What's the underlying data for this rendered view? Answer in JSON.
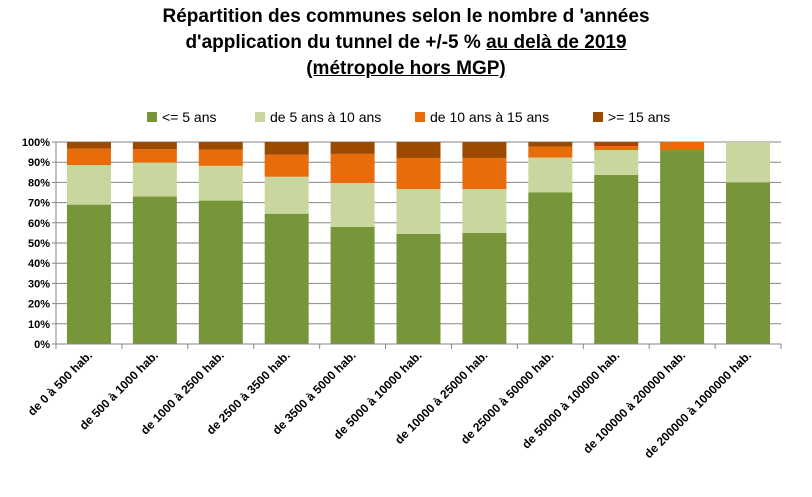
{
  "chart_data": {
    "type": "bar",
    "stacked": "percent",
    "title": {
      "line1": "Répartition des communes selon le nombre d 'années",
      "line2_plain": "d'application du tunnel de +/-5 % ",
      "line2_underlined": "au delà de 2019",
      "line3_underlined": "(métropole hors MGP)"
    },
    "xlabel": "",
    "ylabel": "",
    "ylim": [
      0,
      100
    ],
    "yticks": [
      "0%",
      "10%",
      "20%",
      "30%",
      "40%",
      "50%",
      "60%",
      "70%",
      "80%",
      "90%",
      "100%"
    ],
    "grid": true,
    "legend_placement": "top",
    "categories": [
      "de 0 à 500 hab.",
      "de 500 à 1000 hab.",
      "de 1000 à 2500 hab.",
      "de 2500 à 3500 hab.",
      "de 3500 à 5000 hab.",
      "de 5000 à 10000 hab.",
      "de 10000 à 25000 hab.",
      "de 25000 à 50000 hab.",
      "de 50000 à 100000 hab.",
      "de 100000 à 200000 hab.",
      "de 200000 à 1000000 hab."
    ],
    "series": [
      {
        "name": "<= 5 ans",
        "color": "#77963a",
        "values": [
          69,
          73,
          71,
          64.5,
          58,
          54.5,
          55,
          75,
          83.7,
          96,
          80
        ]
      },
      {
        "name": "de 5 ans à 10 ans",
        "color": "#c9d79e",
        "values": [
          19.6,
          16.8,
          17.2,
          18.3,
          21.7,
          22.2,
          21.7,
          17.3,
          12.3,
          0,
          20
        ]
      },
      {
        "name": "de 10 ans à 15 ans",
        "color": "#e86c0a",
        "values": [
          8.1,
          6.6,
          8.1,
          10.9,
          14.4,
          15.4,
          15.4,
          5.4,
          2,
          4,
          0
        ]
      },
      {
        "name": ">= 15 ans",
        "color": "#9c4a00",
        "values": [
          3.3,
          3.6,
          3.7,
          6.3,
          5.9,
          7.9,
          7.9,
          2.3,
          2,
          0,
          0
        ]
      }
    ]
  }
}
